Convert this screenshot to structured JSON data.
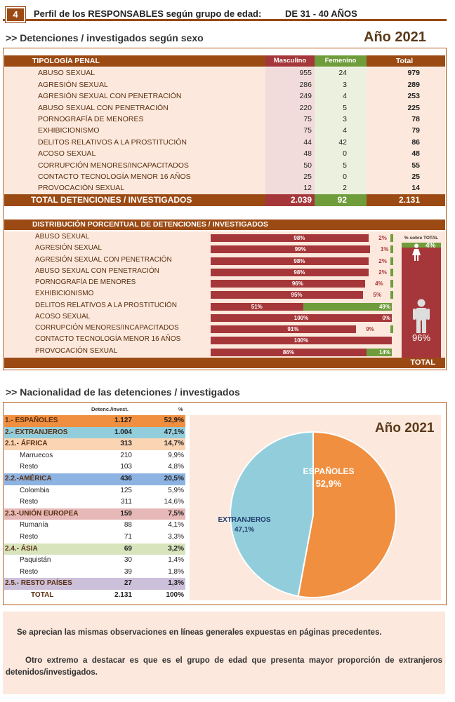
{
  "header": {
    "number": "4",
    "title": "Perfil de los RESPONSABLES según grupo de edad:",
    "range": "DE 31 - 40 AÑOS"
  },
  "section1": {
    "title": ">> Detenciones / investigados según sexo",
    "year": "Año 2021"
  },
  "table": {
    "headers": {
      "tipologia": "TIPOLOGÍA PENAL",
      "masculino": "Masculino",
      "femenino": "Femenino",
      "total": "Total"
    },
    "rows": [
      {
        "label": "ABUSO SEXUAL",
        "m": "955",
        "f": "24",
        "t": "979"
      },
      {
        "label": "AGRESIÓN SEXUAL",
        "m": "286",
        "f": "3",
        "t": "289"
      },
      {
        "label": "AGRESIÓN SEXUAL CON PENETRACIÓN",
        "m": "249",
        "f": "4",
        "t": "253"
      },
      {
        "label": "ABUSO SEXUAL CON PENETRACIÓN",
        "m": "220",
        "f": "5",
        "t": "225"
      },
      {
        "label": "PORNOGRAFÍA DE MENORES",
        "m": "75",
        "f": "3",
        "t": "78"
      },
      {
        "label": "EXHIBICIONISMO",
        "m": "75",
        "f": "4",
        "t": "79"
      },
      {
        "label": "DELITOS RELATIVOS A LA PROSTITUCIÓN",
        "m": "44",
        "f": "42",
        "t": "86"
      },
      {
        "label": "ACOSO SEXUAL",
        "m": "48",
        "f": "0",
        "t": "48"
      },
      {
        "label": "CORRUPCIÓN MENORES/INCAPACITADOS",
        "m": "50",
        "f": "5",
        "t": "55"
      },
      {
        "label": "CONTACTO TECNOLOGÍA MENOR 16 AÑOS",
        "m": "25",
        "f": "0",
        "t": "25"
      },
      {
        "label": "PROVOCACIÓN SEXUAL",
        "m": "12",
        "f": "2",
        "t": "14"
      }
    ],
    "total": {
      "label": "TOTAL  DETENCIONES / INVESTIGADOS",
      "m": "2.039",
      "f": "92",
      "t": "2.131"
    }
  },
  "distribution": {
    "title": "DISTRIBUCIÓN PORCENTUAL DE DETENCIONES / INVESTIGADOS",
    "side_label": "% sobre TOTAL",
    "female_pct": "4%",
    "male_pct": "96%",
    "total_label": "TOTAL",
    "rows": [
      {
        "label": "ABUSO SEXUAL",
        "m": 98,
        "f": 2,
        "ml": "98%",
        "fl": "2%"
      },
      {
        "label": "AGRESIÓN SEXUAL",
        "m": 99,
        "f": 1,
        "ml": "99%",
        "fl": "1%"
      },
      {
        "label": "AGRESIÓN SEXUAL CON PENETRACIÓN",
        "m": 98,
        "f": 2,
        "ml": "98%",
        "fl": "2%"
      },
      {
        "label": "ABUSO SEXUAL CON PENETRACIÓN",
        "m": 98,
        "f": 2,
        "ml": "98%",
        "fl": "2%"
      },
      {
        "label": "PORNOGRAFÍA DE MENORES",
        "m": 96,
        "f": 4,
        "ml": "96%",
        "fl": "4%"
      },
      {
        "label": "EXHIBICIONISMO",
        "m": 95,
        "f": 5,
        "ml": "95%",
        "fl": "5%"
      },
      {
        "label": "DELITOS RELATIVOS A LA PROSTITUCIÓN",
        "m": 51,
        "f": 49,
        "ml": "51%",
        "fl": "49%"
      },
      {
        "label": "ACOSO SEXUAL",
        "m": 100,
        "f": 0,
        "ml": "100%",
        "fl": "0%"
      },
      {
        "label": "CORRUPCIÓN MENORES/INCAPACITADOS",
        "m": 91,
        "f": 9,
        "ml": "91%",
        "fl": "9%"
      },
      {
        "label": "CONTACTO TECNOLOGÍA MENOR 16 AÑOS",
        "m": 100,
        "f": 0,
        "ml": "100%",
        "fl": ""
      },
      {
        "label": "PROVOCACIÓN SEXUAL",
        "m": 86,
        "f": 14,
        "ml": "86%",
        "fl": "14%"
      }
    ]
  },
  "section2": {
    "title": ">> Nacionalidad de las detenciones / investigados",
    "year": "Año 2021"
  },
  "nationality": {
    "headers": {
      "count": "Detenc./Invest.",
      "pct": "%"
    },
    "rows": [
      {
        "label": "1.- ESPAÑOLES",
        "count": "1.127",
        "pct": "52,9%",
        "kind": "esp"
      },
      {
        "label": "2.- EXTRANJEROS",
        "count": "1.004",
        "pct": "47,1%",
        "kind": "ext"
      },
      {
        "label": "2.1.- ÁFRICA",
        "count": "313",
        "pct": "14,7%",
        "kind": "afr"
      },
      {
        "label": "Marruecos",
        "count": "210",
        "pct": "9,9%",
        "kind": "sub"
      },
      {
        "label": "Resto",
        "count": "103",
        "pct": "4,8%",
        "kind": "sub"
      },
      {
        "label": "2.2.-AMÉRICA",
        "count": "436",
        "pct": "20,5%",
        "kind": "ame"
      },
      {
        "label": "Colombia",
        "count": "125",
        "pct": "5,9%",
        "kind": "sub"
      },
      {
        "label": "Resto",
        "count": "311",
        "pct": "14,6%",
        "kind": "sub"
      },
      {
        "label": "2.3.-UNIÓN EUROPEA",
        "count": "159",
        "pct": "7,5%",
        "kind": "ue"
      },
      {
        "label": "Rumanía",
        "count": "88",
        "pct": "4,1%",
        "kind": "sub"
      },
      {
        "label": "Resto",
        "count": "71",
        "pct": "3,3%",
        "kind": "sub"
      },
      {
        "label": "2.4.- ÁSIA",
        "count": "69",
        "pct": "3,2%",
        "kind": "asia"
      },
      {
        "label": "Paquistán",
        "count": "30",
        "pct": "1,4%",
        "kind": "sub"
      },
      {
        "label": "Resto",
        "count": "39",
        "pct": "1,8%",
        "kind": "sub"
      },
      {
        "label": "2.5.- RESTO PAÍSES",
        "count": "27",
        "pct": "1,3%",
        "kind": "resto"
      },
      {
        "label": "TOTAL",
        "count": "2.131",
        "pct": "100%",
        "kind": "total"
      }
    ]
  },
  "chart_data": {
    "type": "pie",
    "title": "Año 2021",
    "categories": [
      "ESPAÑOLES",
      "EXTRANJEROS"
    ],
    "values": [
      52.9,
      47.1
    ],
    "labels": [
      "52,9%",
      "47,1%"
    ],
    "colors": [
      "#f18f40",
      "#92cddc"
    ]
  },
  "observations": {
    "p1": "Se aprecian las mismas observaciones en líneas generales expuestas en páginas precedentes.",
    "p2": "Otro extremo a destacar es que es el grupo de edad que presenta mayor proporción de extranjeros detenidos/investigados."
  },
  "colors": {
    "brown": "#9b4a14",
    "male": "#a5373a",
    "female": "#6f9d3c",
    "peach": "#fce8dc"
  }
}
